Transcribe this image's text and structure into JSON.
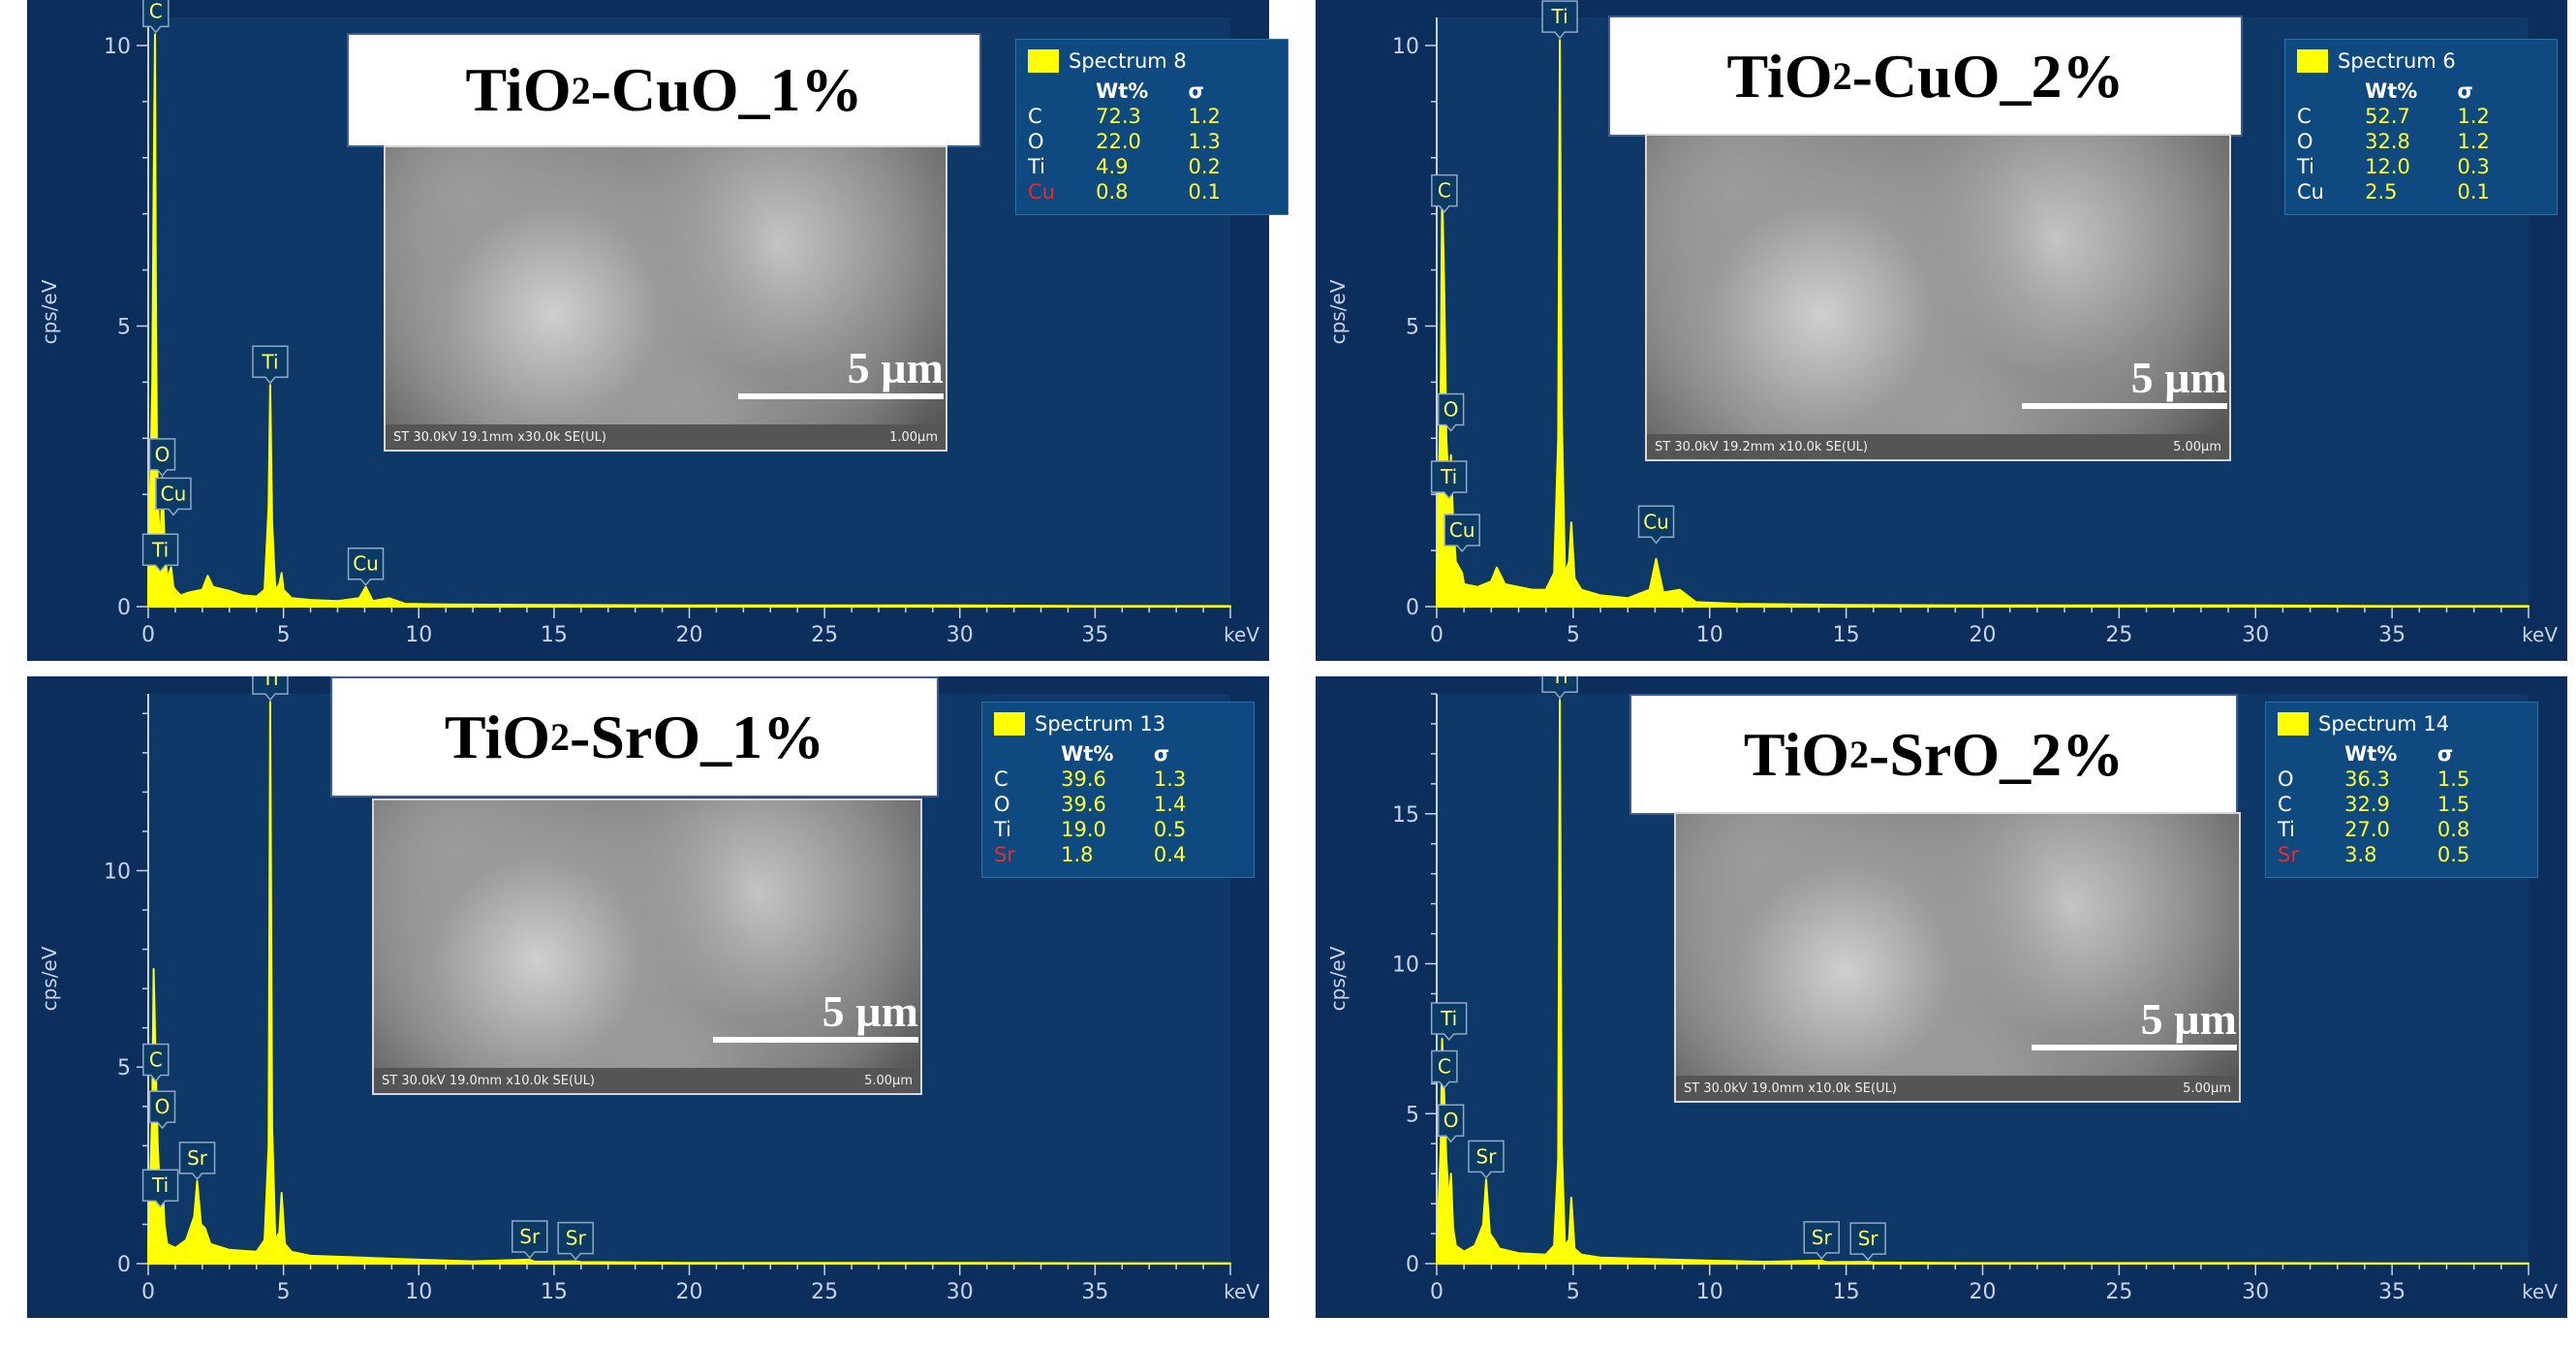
{
  "chart_data": [
    {
      "type": "line",
      "title": "TiO2-CuO_1%",
      "xlabel": "keV",
      "ylabel": "cps/eV",
      "xlim": [
        0,
        40
      ],
      "ylim": [
        0,
        10.5
      ],
      "xticks": [
        0,
        5,
        10,
        15,
        20,
        25,
        30,
        35
      ],
      "yticks": [
        0,
        5,
        10
      ],
      "series": [
        {
          "x": [
            0,
            0.05,
            0.15,
            0.2,
            0.25,
            0.28,
            0.32,
            0.36,
            0.45,
            0.52,
            0.6,
            0.7,
            0.85,
            0.93,
            1.0,
            1.2,
            1.5,
            2.0,
            2.2,
            2.4,
            3.0,
            3.5,
            4.0,
            4.3,
            4.45,
            4.51,
            4.58,
            4.7,
            4.85,
            4.93,
            5.0,
            5.3,
            6.0,
            7.0,
            7.8,
            8.04,
            8.3,
            8.9,
            9.5,
            11,
            15,
            20,
            25,
            30,
            35,
            40
          ],
          "y": [
            0.3,
            1.5,
            4.0,
            7.5,
            10.2,
            6.0,
            3.0,
            1.8,
            1.0,
            2.3,
            1.2,
            0.5,
            0.7,
            0.35,
            0.3,
            0.2,
            0.25,
            0.3,
            0.55,
            0.35,
            0.28,
            0.2,
            0.18,
            0.3,
            1.8,
            3.95,
            1.5,
            0.3,
            0.4,
            0.6,
            0.3,
            0.15,
            0.12,
            0.1,
            0.15,
            0.35,
            0.1,
            0.15,
            0.05,
            0.04,
            0.03,
            0.02,
            0.02,
            0.02,
            0.01,
            0.01
          ]
        }
      ],
      "peak_labels": [
        {
          "text": "C",
          "x": 0.28,
          "y": 10.2
        },
        {
          "text": "O",
          "x": 0.52,
          "y": 2.3
        },
        {
          "text": "Cu",
          "x": 0.93,
          "y": 1.6
        },
        {
          "text": "Ti",
          "x": 0.45,
          "y": 0.6
        },
        {
          "text": "Ti",
          "x": 4.51,
          "y": 3.95
        },
        {
          "text": "Cu",
          "x": 8.04,
          "y": 0.35
        }
      ],
      "sem_image": {
        "scale_label": "5 µm",
        "footer_left": "ST 30.0kV 19.1mm x30.0k SE(UL)",
        "footer_right": "1.00µm"
      },
      "legend": {
        "spectrum": "Spectrum 8",
        "header": [
          "Wt%",
          "σ"
        ],
        "rows": [
          {
            "element": "C",
            "wt": "72.3",
            "sigma": "1.2",
            "element_color": "#ffffff"
          },
          {
            "element": "O",
            "wt": "22.0",
            "sigma": "1.3",
            "element_color": "#ffffff"
          },
          {
            "element": "Ti",
            "wt": "4.9",
            "sigma": "0.2",
            "element_color": "#ffffff"
          },
          {
            "element": "Cu",
            "wt": "0.8",
            "sigma": "0.1",
            "element_color": "#e23030"
          }
        ]
      }
    },
    {
      "type": "line",
      "title": "TiO2-CuO_2%",
      "xlabel": "keV",
      "ylabel": "cps/eV",
      "xlim": [
        0,
        40
      ],
      "ylim": [
        0,
        10.5
      ],
      "xticks": [
        0,
        5,
        10,
        15,
        20,
        25,
        30,
        35
      ],
      "yticks": [
        0,
        5,
        10
      ],
      "series": [
        {
          "x": [
            0,
            0.05,
            0.15,
            0.2,
            0.28,
            0.35,
            0.45,
            0.52,
            0.6,
            0.7,
            0.93,
            1.0,
            1.5,
            2.0,
            2.2,
            2.5,
            3.0,
            3.5,
            4.0,
            4.3,
            4.45,
            4.51,
            4.58,
            4.7,
            4.85,
            4.93,
            5.05,
            5.3,
            6.0,
            7.0,
            7.8,
            8.04,
            8.3,
            8.9,
            9.5,
            11,
            15,
            20,
            25,
            30,
            35,
            40
          ],
          "y": [
            0.3,
            1.5,
            4.0,
            7.5,
            5.5,
            3.0,
            2.0,
            2.7,
            1.5,
            0.8,
            0.6,
            0.4,
            0.35,
            0.45,
            0.7,
            0.4,
            0.35,
            0.3,
            0.3,
            0.6,
            3.0,
            10.1,
            3.5,
            0.6,
            0.8,
            1.5,
            0.5,
            0.3,
            0.2,
            0.15,
            0.3,
            0.85,
            0.25,
            0.3,
            0.08,
            0.05,
            0.03,
            0.02,
            0.02,
            0.02,
            0.01,
            0.01
          ]
        }
      ],
      "peak_labels": [
        {
          "text": "C",
          "x": 0.28,
          "y": 7.0
        },
        {
          "text": "O",
          "x": 0.52,
          "y": 3.1
        },
        {
          "text": "Ti",
          "x": 0.45,
          "y": 1.9
        },
        {
          "text": "Cu",
          "x": 0.93,
          "y": 0.95
        },
        {
          "text": "Ti",
          "x": 4.51,
          "y": 10.1
        },
        {
          "text": "Cu",
          "x": 8.04,
          "y": 1.1
        }
      ],
      "sem_image": {
        "scale_label": "5 µm",
        "footer_left": "ST 30.0kV 19.2mm x10.0k SE(UL)",
        "footer_right": "5.00µm"
      },
      "legend": {
        "spectrum": "Spectrum 6",
        "header": [
          "Wt%",
          "σ"
        ],
        "rows": [
          {
            "element": "C",
            "wt": "52.7",
            "sigma": "1.2",
            "element_color": "#ffffff"
          },
          {
            "element": "O",
            "wt": "32.8",
            "sigma": "1.2",
            "element_color": "#ffffff"
          },
          {
            "element": "Ti",
            "wt": "12.0",
            "sigma": "0.3",
            "element_color": "#ffffff"
          },
          {
            "element": "Cu",
            "wt": "2.5",
            "sigma": "0.1",
            "element_color": "#ffffff"
          }
        ]
      }
    },
    {
      "type": "line",
      "title": "TiO2-SrO_1%",
      "xlabel": "keV",
      "ylabel": "cps/eV",
      "xlim": [
        0,
        40
      ],
      "ylim": [
        0,
        14.5
      ],
      "xticks": [
        0,
        5,
        10,
        15,
        20,
        25,
        30,
        35
      ],
      "yticks": [
        0,
        5,
        10
      ],
      "series": [
        {
          "x": [
            0,
            0.05,
            0.15,
            0.2,
            0.28,
            0.35,
            0.45,
            0.52,
            0.6,
            0.7,
            1.0,
            1.4,
            1.7,
            1.81,
            1.95,
            2.1,
            2.3,
            3.0,
            4.0,
            4.3,
            4.45,
            4.51,
            4.58,
            4.7,
            4.85,
            4.93,
            5.05,
            5.3,
            6.0,
            8.0,
            10,
            12,
            14.1,
            14.3,
            15.8,
            16.0,
            18,
            20,
            25,
            30,
            35,
            40
          ],
          "y": [
            0.3,
            1.5,
            4.0,
            7.5,
            5.0,
            3.0,
            1.5,
            2.2,
            1.0,
            0.5,
            0.4,
            0.6,
            1.2,
            2.1,
            1.0,
            0.9,
            0.5,
            0.35,
            0.3,
            0.6,
            3.0,
            14.3,
            3.5,
            0.6,
            0.8,
            1.8,
            0.5,
            0.3,
            0.2,
            0.15,
            0.1,
            0.06,
            0.1,
            0.05,
            0.06,
            0.04,
            0.03,
            0.02,
            0.02,
            0.02,
            0.01,
            0.01
          ]
        }
      ],
      "peak_labels": [
        {
          "text": "C",
          "x": 0.28,
          "y": 4.6
        },
        {
          "text": "O",
          "x": 0.52,
          "y": 3.4
        },
        {
          "text": "Ti",
          "x": 0.45,
          "y": 1.4
        },
        {
          "text": "Sr",
          "x": 1.81,
          "y": 2.1
        },
        {
          "text": "Ti",
          "x": 4.51,
          "y": 14.3
        },
        {
          "text": "Sr",
          "x": 14.1,
          "y": 0.1
        },
        {
          "text": "Sr",
          "x": 15.8,
          "y": 0.06
        }
      ],
      "sem_image": {
        "scale_label": "5 µm",
        "footer_left": "ST 30.0kV 19.0mm x10.0k SE(UL)",
        "footer_right": "5.00µm"
      },
      "legend": {
        "spectrum": "Spectrum 13",
        "header": [
          "Wt%",
          "σ"
        ],
        "rows": [
          {
            "element": "C",
            "wt": "39.6",
            "sigma": "1.3",
            "element_color": "#ffffff"
          },
          {
            "element": "O",
            "wt": "39.6",
            "sigma": "1.4",
            "element_color": "#ffffff"
          },
          {
            "element": "Ti",
            "wt": "19.0",
            "sigma": "0.5",
            "element_color": "#ffffff"
          },
          {
            "element": "Sr",
            "wt": "1.8",
            "sigma": "0.4",
            "element_color": "#e23030"
          }
        ]
      }
    },
    {
      "type": "line",
      "title": "TiO2-SrO_2%",
      "xlabel": "keV",
      "ylabel": "cps/eV",
      "xlim": [
        0,
        40
      ],
      "ylim": [
        0,
        19
      ],
      "xticks": [
        0,
        5,
        10,
        15,
        20,
        25,
        30,
        35
      ],
      "yticks": [
        0,
        5,
        10,
        15
      ],
      "series": [
        {
          "x": [
            0,
            0.05,
            0.15,
            0.2,
            0.28,
            0.35,
            0.45,
            0.52,
            0.6,
            0.7,
            1.0,
            1.4,
            1.7,
            1.81,
            1.95,
            2.1,
            2.3,
            3.0,
            4.0,
            4.3,
            4.45,
            4.51,
            4.58,
            4.7,
            4.85,
            4.93,
            5.05,
            5.3,
            6.0,
            8.0,
            10,
            12,
            14.1,
            14.3,
            15.8,
            16.0,
            18,
            20,
            25,
            30,
            35,
            40
          ],
          "y": [
            0.3,
            1.5,
            4.0,
            7.5,
            5.5,
            3.5,
            2.0,
            3.0,
            1.2,
            0.6,
            0.4,
            0.6,
            1.3,
            2.8,
            1.0,
            0.8,
            0.5,
            0.35,
            0.3,
            0.6,
            3.5,
            18.8,
            4.0,
            0.6,
            0.8,
            2.2,
            0.5,
            0.3,
            0.2,
            0.15,
            0.1,
            0.06,
            0.1,
            0.05,
            0.06,
            0.04,
            0.03,
            0.02,
            0.02,
            0.02,
            0.01,
            0.01
          ]
        }
      ],
      "peak_labels": [
        {
          "text": "Ti",
          "x": 0.45,
          "y": 7.4
        },
        {
          "text": "C",
          "x": 0.28,
          "y": 5.8
        },
        {
          "text": "O",
          "x": 0.52,
          "y": 4.0
        },
        {
          "text": "Sr",
          "x": 1.81,
          "y": 2.8
        },
        {
          "text": "Ti",
          "x": 4.51,
          "y": 18.8
        },
        {
          "text": "Sr",
          "x": 14.1,
          "y": 0.1
        },
        {
          "text": "Sr",
          "x": 15.8,
          "y": 0.06
        }
      ],
      "sem_image": {
        "scale_label": "5 µm",
        "footer_left": "ST 30.0kV 19.0mm x10.0k SE(UL)",
        "footer_right": "5.00µm"
      },
      "legend": {
        "spectrum": "Spectrum 14",
        "header": [
          "Wt%",
          "σ"
        ],
        "rows": [
          {
            "element": "O",
            "wt": "36.3",
            "sigma": "1.5",
            "element_color": "#ffffff"
          },
          {
            "element": "C",
            "wt": "32.9",
            "sigma": "1.5",
            "element_color": "#ffffff"
          },
          {
            "element": "Ti",
            "wt": "27.0",
            "sigma": "0.8",
            "element_color": "#ffffff"
          },
          {
            "element": "Sr",
            "wt": "3.8",
            "sigma": "0.5",
            "element_color": "#e23030"
          }
        ]
      }
    }
  ],
  "colors": {
    "panel_bg": "#0b2e5c",
    "plot_bg": "#0d3868",
    "spectrum": "#ffff00",
    "axis": "#c8d4e6",
    "label_bg": "#0b3a66",
    "label_border": "#8fa9c7",
    "label_text": "#ffff66"
  }
}
